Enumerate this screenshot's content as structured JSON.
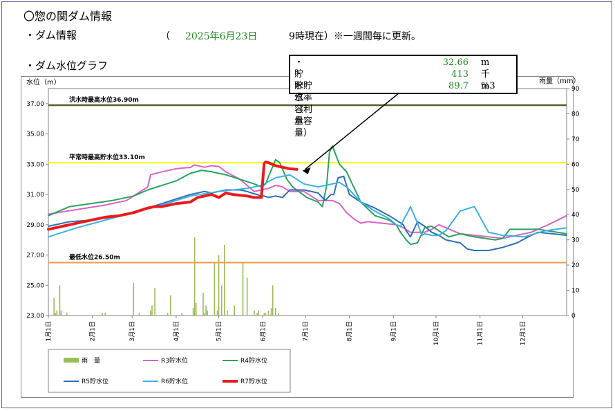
{
  "header": {
    "title": "〇惣の関ダム情報",
    "subtitle": "・ダム情報",
    "date_open": "（",
    "date": "2025年6月23日",
    "date_suffix": "9時現在）※一週間毎に更新。",
    "graph_title": "・ダム水位グラフ"
  },
  "infobox": {
    "rows": [
      {
        "label": "・貯水位",
        "value": "32.66",
        "unit": "m"
      },
      {
        "label": "・貯水容量",
        "value": "413",
        "unit": "千m3"
      },
      {
        "label": "・貯水率（利水容量）",
        "value": "89.7",
        "unit": "%"
      }
    ]
  },
  "chart_data": {
    "type": "line",
    "ylabel": "水位（m）",
    "y2label": "雨量（mm）",
    "ylim": [
      23.0,
      38.0
    ],
    "y2lim": [
      0,
      90
    ],
    "yticks": [
      "23.00",
      "25.00",
      "27.00",
      "29.00",
      "31.00",
      "33.00",
      "35.00",
      "37.00"
    ],
    "y2ticks": [
      "0",
      "10",
      "20",
      "30",
      "40",
      "50",
      "60",
      "70",
      "80",
      "90"
    ],
    "x_range_days": [
      0,
      365
    ],
    "month_labels": [
      "1月1日",
      "2月1日",
      "3月1日",
      "4月1日",
      "5月1日",
      "6月1日",
      "7月1日",
      "8月1日",
      "9月1日",
      "10月1日",
      "11月1日",
      "12月1日"
    ],
    "month_days": [
      0,
      31,
      59,
      90,
      120,
      151,
      181,
      212,
      243,
      273,
      304,
      334
    ],
    "reference_lines": [
      {
        "label": "洪水時最高水位36.90m",
        "value": 36.9,
        "color": "#4f6228"
      },
      {
        "label": "平常時最高貯水位33.10m",
        "value": 33.1,
        "color": "#ffff00"
      },
      {
        "label": "最低水位26.50m",
        "value": 26.5,
        "color": "#f79646"
      }
    ],
    "rain": {
      "name": "雨　量",
      "color": "#9bbb59",
      "days": [
        4,
        5,
        6,
        8,
        9,
        13,
        38,
        40,
        60,
        64,
        72,
        73,
        75,
        84,
        86,
        94,
        102,
        103,
        104,
        109,
        110,
        111,
        112,
        117,
        119,
        120,
        122,
        124,
        126,
        131,
        137,
        140,
        145,
        147,
        148,
        152,
        153,
        155,
        157,
        158,
        160,
        162
      ],
      "values": [
        7,
        1,
        2,
        12,
        2,
        1,
        1,
        1,
        13,
        1,
        2,
        4,
        11,
        1,
        8,
        1,
        3,
        31,
        5,
        9,
        1,
        4,
        2,
        21,
        2,
        24,
        12,
        28,
        2,
        4,
        21,
        15,
        2,
        1,
        2,
        1,
        1,
        2,
        3,
        12,
        3,
        1
      ]
    },
    "series": [
      {
        "name": "R3貯水位",
        "color": "#db61c8",
        "width": 2,
        "x": [
          0,
          20,
          40,
          55,
          70,
          72,
          80,
          90,
          95,
          100,
          103,
          110,
          115,
          120,
          125,
          135,
          145,
          155,
          160,
          165,
          170,
          180,
          190,
          200,
          205,
          210,
          215,
          220,
          225,
          235,
          245,
          250,
          255,
          260,
          265,
          270,
          275,
          280,
          290,
          300,
          320,
          340,
          352,
          365
        ],
        "y": [
          29.7,
          30.0,
          30.3,
          30.6,
          31.5,
          32.3,
          32.5,
          32.7,
          32.75,
          32.78,
          32.95,
          32.8,
          32.9,
          32.85,
          32.5,
          32.0,
          31.2,
          31.4,
          31.6,
          31.5,
          31.2,
          31.2,
          30.6,
          30.6,
          30.4,
          29.8,
          29.4,
          29.1,
          29.2,
          29.1,
          29.0,
          28.8,
          28.5,
          28.5,
          28.5,
          28.7,
          29.0,
          28.8,
          28.4,
          28.3,
          28.1,
          28.5,
          29.0,
          29.6
        ]
      },
      {
        "name": "R4貯水位",
        "color": "#27a35a",
        "width": 2,
        "x": [
          0,
          15,
          30,
          45,
          60,
          70,
          80,
          90,
          100,
          108,
          115,
          125,
          135,
          145,
          150,
          153,
          156,
          160,
          163,
          168,
          172,
          182,
          190,
          193,
          196,
          198,
          200,
          205,
          210,
          220,
          230,
          240,
          245,
          248,
          252,
          255,
          260,
          265,
          270,
          275,
          282,
          290,
          300,
          315,
          320,
          325,
          335,
          345,
          365
        ],
        "y": [
          29.6,
          30.2,
          30.4,
          30.6,
          30.9,
          31.3,
          31.6,
          31.9,
          32.4,
          32.6,
          32.5,
          32.3,
          32.0,
          31.7,
          31.5,
          31.7,
          32.4,
          33.3,
          33.1,
          32.0,
          31.5,
          30.8,
          30.5,
          30.2,
          31.6,
          33.8,
          34.2,
          33.0,
          32.5,
          30.5,
          29.6,
          29.3,
          29.0,
          28.5,
          28.0,
          27.7,
          27.8,
          28.8,
          28.9,
          28.6,
          28.2,
          28.4,
          28.2,
          28.0,
          28.1,
          28.7,
          28.7,
          28.7,
          28.4
        ]
      },
      {
        "name": "R5貯水位",
        "color": "#2e6eb5",
        "width": 2,
        "x": [
          0,
          15,
          30,
          45,
          60,
          70,
          80,
          90,
          100,
          110,
          115,
          120,
          125,
          135,
          140,
          143,
          147,
          150,
          152,
          155,
          160,
          165,
          170,
          180,
          190,
          195,
          199,
          201,
          204,
          208,
          212,
          220,
          230,
          240,
          245,
          250,
          252,
          255,
          260,
          265,
          270,
          275,
          280,
          290,
          295,
          300,
          310,
          320,
          330,
          340,
          345,
          355,
          365
        ],
        "y": [
          28.9,
          29.2,
          29.3,
          29.5,
          29.8,
          30.1,
          30.4,
          30.7,
          31.0,
          31.2,
          31.1,
          31.2,
          31.3,
          31.3,
          31.2,
          31.1,
          31.0,
          30.9,
          30.9,
          30.8,
          30.9,
          30.8,
          31.3,
          31.3,
          31.1,
          30.6,
          31.0,
          31.0,
          32.1,
          32.2,
          31.0,
          30.5,
          30.1,
          29.6,
          29.3,
          29.0,
          28.6,
          28.2,
          29.2,
          28.9,
          28.5,
          28.3,
          28.0,
          27.8,
          27.4,
          27.3,
          27.3,
          27.5,
          27.8,
          28.3,
          28.5,
          28.4,
          28.3
        ]
      },
      {
        "name": "R6貯水位",
        "color": "#3bb0e8",
        "width": 2,
        "x": [
          0,
          20,
          40,
          60,
          80,
          100,
          120,
          140,
          150,
          160,
          170,
          180,
          190,
          200,
          205,
          210,
          220,
          230,
          240,
          245,
          248,
          250,
          253,
          255,
          260,
          263,
          265,
          270,
          275,
          280,
          290,
          300,
          310,
          320,
          335,
          350,
          365
        ],
        "y": [
          28.2,
          28.8,
          29.3,
          29.8,
          30.3,
          30.9,
          31.2,
          31.4,
          31.6,
          32.1,
          32.3,
          31.7,
          31.5,
          31.7,
          31.8,
          31.5,
          30.5,
          29.9,
          29.4,
          29.0,
          28.9,
          29.3,
          29.8,
          30.2,
          29.1,
          28.3,
          28.4,
          28.3,
          28.3,
          28.6,
          29.9,
          30.2,
          28.5,
          28.3,
          28.2,
          28.6,
          28.8
        ]
      },
      {
        "name": "R7貯水位",
        "color": "#e81c1c",
        "width": 4,
        "x": [
          0,
          5,
          10,
          20,
          30,
          40,
          50,
          60,
          70,
          75,
          80,
          85,
          90,
          100,
          105,
          110,
          115,
          120,
          125,
          130,
          140,
          145,
          150,
          152,
          153,
          155,
          160,
          165,
          170,
          175
        ],
        "y": [
          28.7,
          28.8,
          28.9,
          29.1,
          29.3,
          29.5,
          29.6,
          29.8,
          30.1,
          30.2,
          30.2,
          30.3,
          30.4,
          30.5,
          30.8,
          30.9,
          31.0,
          30.8,
          31.1,
          31.0,
          30.9,
          30.8,
          30.8,
          33.05,
          33.15,
          33.1,
          32.9,
          32.8,
          32.7,
          32.66
        ]
      }
    ],
    "legend": [
      {
        "name": "雨　量",
        "color": "#9bbb59",
        "kind": "bar"
      },
      {
        "name": "R3貯水位",
        "color": "#db61c8",
        "kind": "line"
      },
      {
        "name": "R4貯水位",
        "color": "#27a35a",
        "kind": "line"
      },
      {
        "name": "R5貯水位",
        "color": "#2e6eb5",
        "kind": "line"
      },
      {
        "name": "R6貯水位",
        "color": "#3bb0e8",
        "kind": "line"
      },
      {
        "name": "R7貯水位",
        "color": "#e81c1c",
        "kind": "line-thick"
      }
    ]
  }
}
